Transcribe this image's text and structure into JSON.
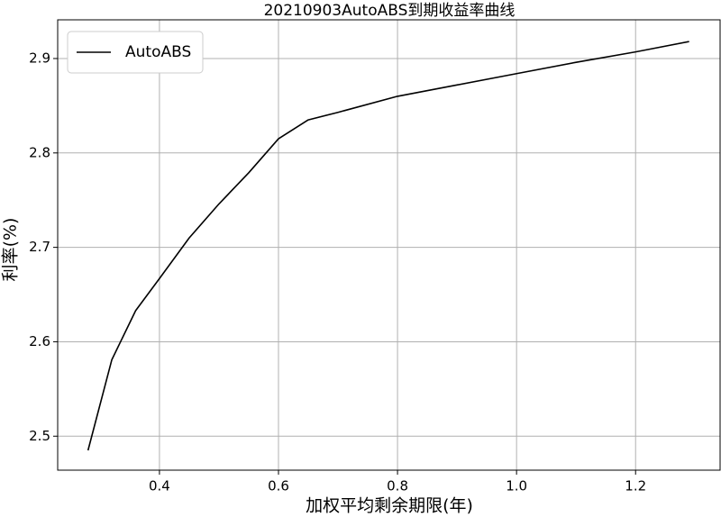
{
  "chart_data": {
    "type": "line",
    "title": "20210903AutoABS到期收益率曲线",
    "x_label": "加权平均剩余期限(年)",
    "y_label": "利率(%)",
    "x": [
      0.28,
      0.32,
      0.36,
      0.4,
      0.45,
      0.5,
      0.55,
      0.6,
      0.65,
      0.7,
      0.8,
      0.9,
      1.0,
      1.1,
      1.2,
      1.29
    ],
    "series": [
      {
        "name": "AutoABS",
        "color": "#000000",
        "values": [
          2.485,
          2.581,
          2.633,
          2.667,
          2.71,
          2.746,
          2.779,
          2.815,
          2.835,
          2.843,
          2.86,
          2.872,
          2.884,
          2.896,
          2.907,
          2.918
        ]
      }
    ],
    "xlim": [
      0.229,
      1.342
    ],
    "ylim": [
      2.464,
      2.941
    ],
    "xticks": [
      0.4,
      0.6,
      0.8,
      {
        "value": 1,
        "label": "1.0"
      },
      1.2
    ],
    "yticks": [
      2.5,
      2.6,
      2.7,
      2.8,
      2.9
    ],
    "grid": true,
    "legend": "upper left"
  }
}
